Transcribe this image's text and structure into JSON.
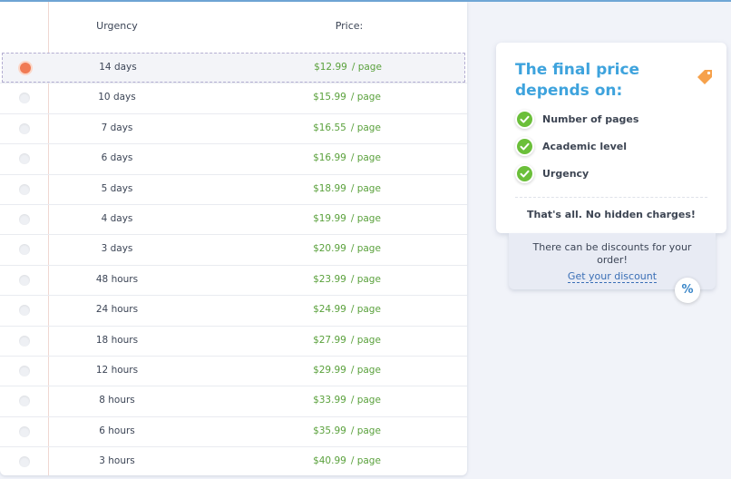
{
  "table": {
    "header_urgency": "Urgency",
    "header_price": "Price:",
    "per_page": "/ page",
    "rows": [
      {
        "urgency": "14 days",
        "price": "$12.99",
        "selected": true
      },
      {
        "urgency": "10 days",
        "price": "$15.99",
        "selected": false
      },
      {
        "urgency": "7 days",
        "price": "$16.55",
        "selected": false
      },
      {
        "urgency": "6 days",
        "price": "$16.99",
        "selected": false
      },
      {
        "urgency": "5 days",
        "price": "$18.99",
        "selected": false
      },
      {
        "urgency": "4 days",
        "price": "$19.99",
        "selected": false
      },
      {
        "urgency": "3 days",
        "price": "$20.99",
        "selected": false
      },
      {
        "urgency": "48 hours",
        "price": "$23.99",
        "selected": false
      },
      {
        "urgency": "24 hours",
        "price": "$24.99",
        "selected": false
      },
      {
        "urgency": "18 hours",
        "price": "$27.99",
        "selected": false
      },
      {
        "urgency": "12 hours",
        "price": "$29.99",
        "selected": false
      },
      {
        "urgency": "8 hours",
        "price": "$33.99",
        "selected": false
      },
      {
        "urgency": "6 hours",
        "price": "$35.99",
        "selected": false
      },
      {
        "urgency": "3 hours",
        "price": "$40.99",
        "selected": false
      }
    ]
  },
  "info": {
    "title": "The final price depends on:",
    "factors": [
      "Number of pages",
      "Academic level",
      "Urgency"
    ],
    "footer": "That's all. No hidden charges!",
    "icons": {
      "title": "price-tag-icon",
      "factor": "check-icon"
    }
  },
  "discount": {
    "text": "There can be discounts for your order!",
    "link": "Get your discount",
    "badge": "%"
  },
  "colors": {
    "accent": "#3ea3dd",
    "price": "#5aa13c",
    "radio_selected": "#f07a54",
    "check": "#6bbf3a"
  }
}
